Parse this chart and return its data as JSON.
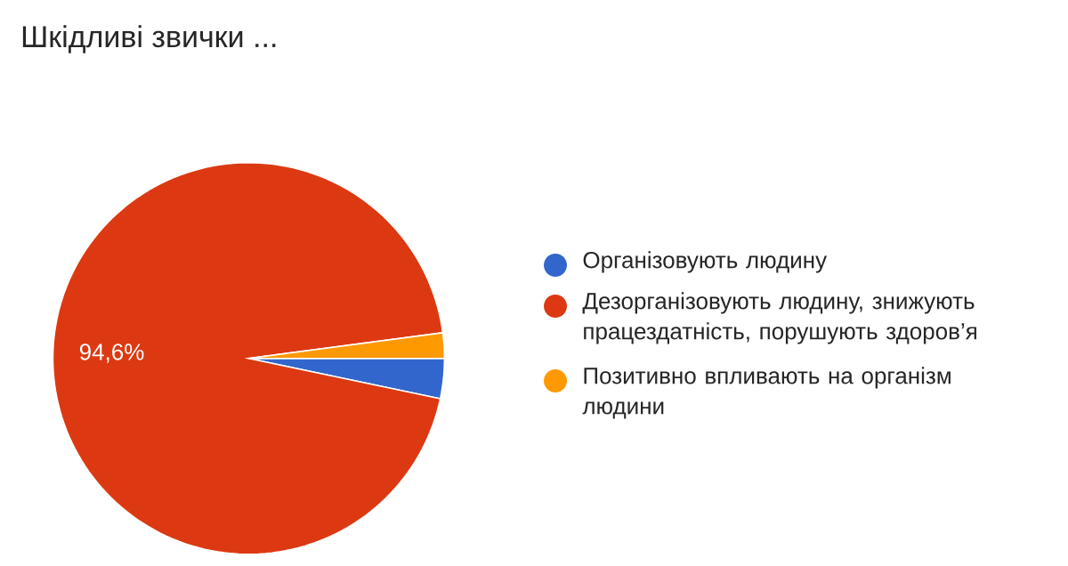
{
  "chart_data": {
    "type": "pie",
    "title": "Шкідливі звички ...",
    "categories": [
      "Організовують людину",
      "Дезорганізовують людину, знижують працездатність, порушують здоров’я",
      "Позитивно впливають на організм людини"
    ],
    "values": [
      3.3,
      94.6,
      2.1
    ],
    "colors": [
      "#3366cc",
      "#dc3912",
      "#ff9900"
    ],
    "value_labels": [
      null,
      "94,6%",
      null
    ],
    "legend": "right"
  }
}
